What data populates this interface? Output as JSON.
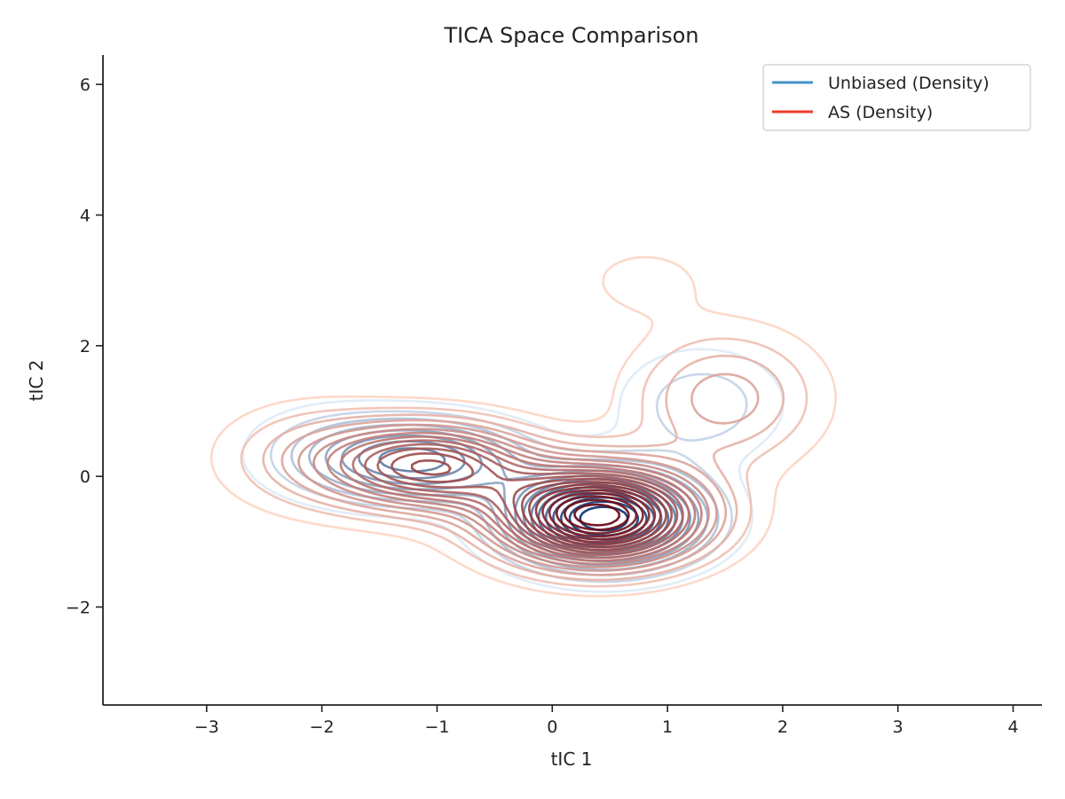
{
  "chart_data": {
    "type": "contour",
    "title": "TICA Space Comparison",
    "xlabel": "tIC 1",
    "ylabel": "tIC 2",
    "xlim": [
      -3.9,
      4.25
    ],
    "ylim": [
      -3.5,
      6.45
    ],
    "xticks": [
      -3,
      -2,
      -1,
      0,
      1,
      2,
      3,
      4
    ],
    "yticks": [
      -2,
      0,
      2,
      4,
      6
    ],
    "xtick_labels": [
      "−3",
      "−2",
      "−1",
      "0",
      "1",
      "2",
      "3",
      "4"
    ],
    "ytick_labels": [
      "−2",
      "0",
      "2",
      "4",
      "6"
    ],
    "grid": false,
    "legend_position": "top-right",
    "series": [
      {
        "name": "Unbiased (Density)",
        "color": "#4292c6",
        "levels": 14,
        "modes": [
          {
            "x": 0.45,
            "y": -0.65,
            "sx": 0.55,
            "sy": 0.48,
            "w": 1.0
          },
          {
            "x": -1.15,
            "y": 0.25,
            "sx": 0.6,
            "sy": 0.42,
            "w": 0.55
          },
          {
            "x": 1.3,
            "y": 1.1,
            "sx": 0.5,
            "sy": 0.6,
            "w": 0.18
          },
          {
            "x": 0.6,
            "y": 2.9,
            "sx": 0.35,
            "sy": 0.35,
            "w": 0.05
          },
          {
            "x": -2.0,
            "y": 0.4,
            "sx": 0.5,
            "sy": 0.5,
            "w": 0.12
          }
        ]
      },
      {
        "name": "AS (Density)",
        "color": "#ef3b2c",
        "levels": 20,
        "modes": [
          {
            "x": 0.4,
            "y": -0.6,
            "sx": 0.6,
            "sy": 0.5,
            "w": 1.0
          },
          {
            "x": -1.05,
            "y": 0.15,
            "sx": 0.6,
            "sy": 0.45,
            "w": 0.6
          },
          {
            "x": 1.5,
            "y": 1.2,
            "sx": 0.55,
            "sy": 0.7,
            "w": 0.22
          },
          {
            "x": 0.8,
            "y": 3.0,
            "sx": 0.4,
            "sy": 0.4,
            "w": 0.07
          },
          {
            "x": -2.1,
            "y": 0.3,
            "sx": 0.55,
            "sy": 0.55,
            "w": 0.15
          }
        ]
      }
    ]
  }
}
